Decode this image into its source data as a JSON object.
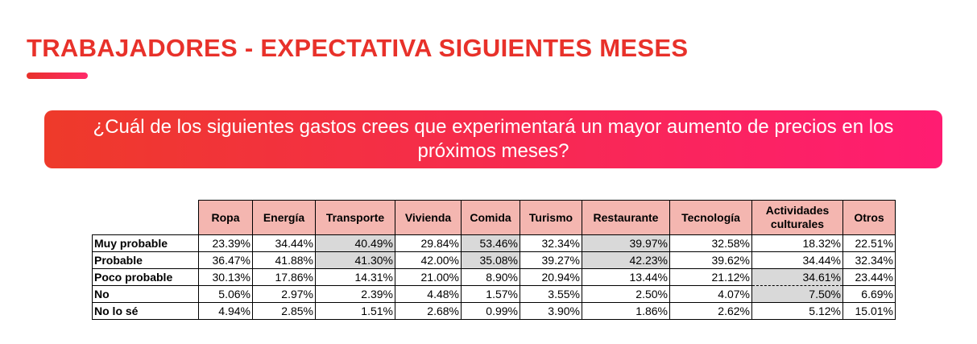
{
  "header": {
    "title": "TRABAJADORES - EXPECTATIVA SIGUIENTES MESES"
  },
  "question": "¿Cuál de los siguientes gastos crees que experimentará un mayor aumento de precios en los próximos meses?",
  "table": {
    "columns": [
      "Ropa",
      "Energía",
      "Transporte",
      "Vivienda",
      "Comida",
      "Turismo",
      "Restaurante",
      "Tecnología",
      "Actividades culturales",
      "Otros"
    ],
    "rows": [
      {
        "label": "Muy probable",
        "values": [
          "23.39%",
          "34.44%",
          "40.49%",
          "29.84%",
          "53.46%",
          "32.34%",
          "39.97%",
          "32.58%",
          "18.32%",
          "22.51%"
        ]
      },
      {
        "label": "Probable",
        "values": [
          "36.47%",
          "41.88%",
          "41.30%",
          "42.00%",
          "35.08%",
          "39.27%",
          "42.23%",
          "39.62%",
          "34.44%",
          "32.34%"
        ]
      },
      {
        "label": "Poco probable",
        "values": [
          "30.13%",
          "17.86%",
          "14.31%",
          "21.00%",
          "8.90%",
          "20.94%",
          "13.44%",
          "21.12%",
          "34.61%",
          "23.44%"
        ]
      },
      {
        "label": "No",
        "values": [
          "5.06%",
          "2.97%",
          "2.39%",
          "4.48%",
          "1.57%",
          "3.55%",
          "2.50%",
          "4.07%",
          "7.50%",
          "6.69%"
        ]
      },
      {
        "label": "No lo sé",
        "values": [
          "4.94%",
          "2.85%",
          "1.51%",
          "2.68%",
          "0.99%",
          "3.90%",
          "1.86%",
          "2.62%",
          "5.12%",
          "15.01%"
        ]
      }
    ]
  }
}
